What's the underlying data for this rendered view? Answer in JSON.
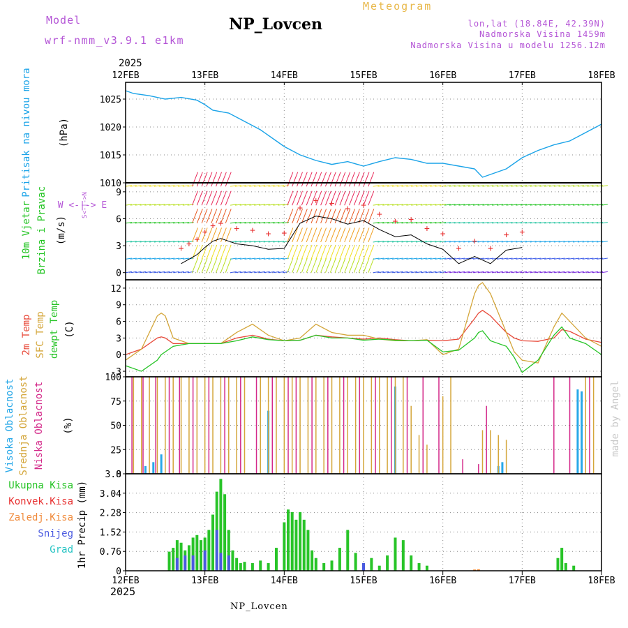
{
  "header": {
    "model_label": "Model",
    "model_value": "wrf-nmm_v3.9.1 e1km",
    "title": "NP_Lovcen",
    "meteogram_label": "Meteogram",
    "lonlat": "lon,lat (18.84E, 42.39N)",
    "altitude": "Nadmorska Visina 1459m",
    "model_altitude": "Nadmorska Visina u modelu 1256.12m",
    "year_top": "2025",
    "year_bottom": "2025",
    "footer_station": "NP_Lovcen",
    "watermark": "made by Angel"
  },
  "colors": {
    "model": "#b455d6",
    "meteogram": "#e8b84a",
    "info": "#b455d6",
    "pressure": "#1aa3e8",
    "wind": "#22c422",
    "gust": "#e83232",
    "temp2m": "#e84a3a",
    "sfc": "#d4a63a",
    "dewpt": "#28c428",
    "high_cloud": "#28a8e8",
    "mid_cloud": "#d4a63a",
    "low_cloud": "#d42a8a",
    "total_precip": "#28c428",
    "conv": "#e83232",
    "frozen": "#f08a3a",
    "snow": "#4a5ae0",
    "hail": "#28c4c4"
  },
  "x_axis": {
    "tick_labels": [
      "12FEB",
      "13FEB",
      "14FEB",
      "15FEB",
      "16FEB",
      "17FEB",
      "18FEB"
    ],
    "range_days": [
      0,
      6
    ]
  },
  "panels": {
    "pressure": {
      "label": "Pritisak na nivou mora",
      "unit": "(hPa)",
      "yticks": [
        "1010",
        "1015",
        "1020",
        "1025"
      ]
    },
    "wind": {
      "label1": "10m Vjetar",
      "label2": "Brzina i Pravac",
      "unit": "(m/s)",
      "compass_we": "W <-|-> E",
      "compass_ns": "S<-|->N",
      "yticks": [
        "0",
        "3",
        "6",
        "9"
      ]
    },
    "temp": {
      "label_2m": "2m Temp",
      "label_sfc": "SFC Temp",
      "label_dew": "dewpt Temp",
      "unit": "(C)",
      "yticks": [
        "-3",
        "0",
        "3",
        "6",
        "9",
        "12"
      ]
    },
    "cloud": {
      "label_high": "Visoka Oblacnost",
      "label_mid": "Srednja Oblacnost",
      "label_low": "Niska Oblacnost",
      "unit": "(%)",
      "yticks": [
        "0",
        "25",
        "50",
        "75",
        "100"
      ]
    },
    "precip": {
      "legend": [
        "Ukupna Kisa",
        "Konvek.Kisa",
        "Zaledj.Kisa",
        "Snijeg",
        "Grad"
      ],
      "unit": "1hr Precip (mm)",
      "yticks": [
        "0",
        "0.76",
        "1.52",
        "2.28",
        "3.04",
        "3.8"
      ]
    }
  },
  "chart_data": [
    {
      "type": "line",
      "name": "pressure",
      "ylim": [
        1010,
        1028
      ],
      "x": [
        0,
        0.1,
        0.3,
        0.5,
        0.7,
        0.9,
        1.0,
        1.1,
        1.3,
        1.5,
        1.7,
        1.9,
        2.0,
        2.2,
        2.4,
        2.6,
        2.8,
        3.0,
        3.2,
        3.4,
        3.6,
        3.8,
        4.0,
        4.2,
        4.4,
        4.5,
        4.6,
        4.8,
        5.0,
        5.2,
        5.4,
        5.6,
        5.8,
        6.0
      ],
      "y": [
        1026.5,
        1026.0,
        1025.6,
        1025.0,
        1025.3,
        1024.8,
        1024.0,
        1023.0,
        1022.5,
        1021.0,
        1019.5,
        1017.5,
        1016.5,
        1015.0,
        1014.0,
        1013.3,
        1013.8,
        1013.0,
        1013.8,
        1014.5,
        1014.2,
        1013.5,
        1013.5,
        1013.0,
        1012.5,
        1011.0,
        1011.5,
        1012.5,
        1014.5,
        1015.8,
        1016.8,
        1017.5,
        1019.0,
        1020.5
      ]
    },
    {
      "type": "line",
      "name": "wind_speed",
      "ylim": [
        -0.8,
        10
      ],
      "x": [
        0.7,
        0.8,
        0.9,
        1.0,
        1.1,
        1.2,
        1.4,
        1.6,
        1.8,
        2.0,
        2.2,
        2.4,
        2.6,
        2.8,
        3.0,
        3.2,
        3.4,
        3.6,
        3.8,
        4.0,
        4.2,
        4.4,
        4.6,
        4.8,
        5.0
      ],
      "y": [
        1.0,
        1.5,
        2.0,
        2.8,
        3.5,
        3.8,
        3.2,
        3.0,
        2.6,
        2.7,
        5.5,
        6.3,
        6.0,
        5.4,
        5.8,
        4.8,
        4.0,
        4.2,
        3.2,
        2.6,
        1.0,
        1.8,
        1.0,
        2.5,
        2.8
      ]
    },
    {
      "type": "line",
      "name": "temperature",
      "ylim": [
        -4,
        13.5
      ],
      "x": [
        0,
        0.2,
        0.4,
        0.45,
        0.5,
        0.6,
        0.8,
        1.0,
        1.2,
        1.4,
        1.6,
        1.8,
        2.0,
        2.2,
        2.4,
        2.6,
        2.8,
        3.0,
        3.2,
        3.4,
        3.6,
        3.8,
        4.0,
        4.2,
        4.4,
        4.45,
        4.5,
        4.6,
        4.8,
        4.9,
        5.0,
        5.2,
        5.4,
        5.5,
        5.6,
        5.8,
        6.0
      ],
      "series": [
        {
          "name": "2m Temp",
          "values": [
            0,
            1,
            3,
            3.2,
            3.0,
            2,
            2,
            2,
            2,
            3,
            3.5,
            2.8,
            2.5,
            2.6,
            3.5,
            3.2,
            3.0,
            2.8,
            3.0,
            2.7,
            2.5,
            2.6,
            2.5,
            2.8,
            6.5,
            7.5,
            8.0,
            7.0,
            4.0,
            3.0,
            2.5,
            2.4,
            3.0,
            4.5,
            4.2,
            2.8,
            2.2
          ]
        },
        {
          "name": "SFC Temp",
          "values": [
            -1,
            1,
            7,
            7.5,
            7.0,
            3,
            2,
            2,
            2,
            4,
            5.5,
            3.5,
            2.5,
            3.0,
            5.5,
            4.0,
            3.5,
            3.5,
            2.8,
            2.5,
            2.5,
            2.7,
            0.0,
            1.0,
            11,
            12.5,
            13.0,
            11.0,
            4.0,
            0.5,
            -1.0,
            -1.5,
            5.0,
            7.5,
            6.0,
            3.0,
            1.5
          ]
        },
        {
          "name": "dewpt Temp",
          "values": [
            -2,
            -3,
            -1,
            0.0,
            0.5,
            1.5,
            2,
            2,
            2,
            2.5,
            3.2,
            2.7,
            2.5,
            2.6,
            3.5,
            3.0,
            3.0,
            2.6,
            2.8,
            2.6,
            2.5,
            2.6,
            0.5,
            0.8,
            3.0,
            4.0,
            4.3,
            2.5,
            1.5,
            -0.5,
            -3.2,
            -1.0,
            3.5,
            5.0,
            3.0,
            2.0,
            0.0
          ]
        }
      ]
    },
    {
      "type": "bar",
      "name": "cloud_cover",
      "ylim": [
        0,
        100
      ],
      "series": [
        {
          "name": "Visoka Oblacnost",
          "x": [
            0.25,
            0.35,
            0.45,
            1.8,
            3.4,
            4.7,
            4.75,
            5.7,
            5.75
          ],
          "values": [
            8,
            12,
            20,
            65,
            90,
            8,
            12,
            87,
            85
          ]
        },
        {
          "name": "Srednja Oblacnost",
          "x": [
            0.1,
            0.2,
            0.3,
            0.4,
            0.5,
            0.6,
            0.7,
            0.8,
            0.9,
            1.0,
            1.1,
            1.2,
            1.3,
            1.4,
            1.5,
            1.7,
            1.8,
            1.9,
            2.0,
            2.1,
            2.2,
            2.3,
            2.4,
            2.5,
            2.6,
            2.7,
            2.8,
            2.9,
            3.0,
            3.1,
            3.2,
            3.3,
            3.4,
            3.5,
            3.6,
            3.7,
            3.8,
            4.0,
            4.1,
            4.5,
            4.6,
            4.7,
            4.8,
            5.8,
            5.9
          ],
          "values": [
            100,
            100,
            100,
            100,
            100,
            100,
            100,
            100,
            100,
            100,
            100,
            100,
            100,
            100,
            100,
            100,
            100,
            100,
            100,
            100,
            100,
            100,
            100,
            100,
            100,
            100,
            100,
            100,
            100,
            100,
            100,
            100,
            100,
            100,
            70,
            40,
            30,
            80,
            100,
            45,
            45,
            40,
            35,
            100,
            100
          ]
        },
        {
          "name": "Niska Oblacnost",
          "x": [
            0.08,
            0.22,
            0.38,
            0.55,
            0.68,
            0.85,
            1.05,
            1.25,
            1.45,
            1.65,
            1.85,
            2.05,
            2.15,
            2.35,
            2.55,
            2.75,
            2.95,
            3.15,
            3.35,
            3.55,
            3.75,
            3.95,
            4.25,
            4.45,
            4.55,
            5.4,
            5.6,
            5.85
          ],
          "values": [
            100,
            100,
            100,
            100,
            100,
            100,
            100,
            100,
            100,
            100,
            100,
            100,
            100,
            100,
            100,
            100,
            100,
            100,
            100,
            100,
            100,
            100,
            15,
            10,
            70,
            100,
            100,
            100
          ]
        }
      ]
    },
    {
      "type": "bar",
      "name": "precipitation",
      "ylim": [
        0,
        3.8
      ],
      "series": [
        {
          "name": "Ukupna Kisa",
          "x": [
            0.55,
            0.6,
            0.65,
            0.7,
            0.75,
            0.8,
            0.85,
            0.9,
            0.95,
            1.0,
            1.05,
            1.1,
            1.15,
            1.2,
            1.25,
            1.3,
            1.35,
            1.4,
            1.45,
            1.5,
            1.6,
            1.7,
            1.8,
            1.9,
            2.0,
            2.05,
            2.1,
            2.15,
            2.2,
            2.25,
            2.3,
            2.35,
            2.4,
            2.5,
            2.6,
            2.7,
            2.8,
            2.9,
            3.0,
            3.1,
            3.2,
            3.3,
            3.4,
            3.5,
            3.6,
            3.7,
            3.8,
            5.45,
            5.5,
            5.55,
            5.65
          ],
          "values": [
            0.75,
            0.9,
            1.2,
            1.1,
            0.8,
            1.0,
            1.3,
            1.4,
            1.2,
            1.3,
            1.6,
            2.2,
            3.1,
            3.6,
            3.0,
            1.6,
            0.8,
            0.5,
            0.3,
            0.35,
            0.3,
            0.4,
            0.3,
            0.9,
            1.9,
            2.4,
            2.3,
            2.0,
            2.3,
            2.0,
            1.6,
            0.8,
            0.5,
            0.3,
            0.4,
            0.9,
            1.6,
            0.7,
            0.3,
            0.5,
            0.2,
            0.6,
            1.3,
            1.2,
            0.6,
            0.3,
            0.2,
            0.5,
            0.9,
            0.3,
            0.2
          ]
        },
        {
          "name": "Snijeg",
          "x": [
            0.65,
            0.75,
            0.85,
            1.0,
            1.15,
            1.2,
            1.3,
            3.0
          ],
          "values": [
            0.5,
            0.6,
            0.6,
            0.8,
            1.6,
            0.7,
            0.6,
            0.3
          ]
        },
        {
          "name": "Zaledj.Kisa",
          "x": [
            4.4,
            4.45
          ],
          "values": [
            0.05,
            0.06
          ]
        }
      ]
    }
  ]
}
